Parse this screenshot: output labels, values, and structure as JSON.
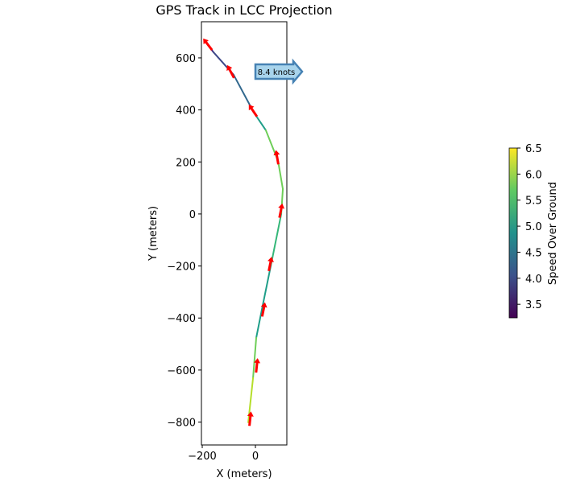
{
  "chart_data": {
    "type": "line",
    "title": "GPS Track in LCC Projection",
    "xlabel": "X (meters)",
    "ylabel": "Y (meters)",
    "xlim": [
      -203,
      118
    ],
    "ylim": [
      -888,
      739
    ],
    "xticks": [
      -200,
      0
    ],
    "yticks": [
      600,
      400,
      200,
      0,
      -200,
      -400,
      -600,
      -800
    ],
    "track": [
      {
        "x": -188,
        "y": 662,
        "speed": 3.5
      },
      {
        "x": -158,
        "y": 622,
        "speed": 3.8
      },
      {
        "x": -82,
        "y": 535,
        "speed": 4.2
      },
      {
        "x": -6,
        "y": 390,
        "speed": 4.6
      },
      {
        "x": 39,
        "y": 322,
        "speed": 5.2
      },
      {
        "x": 85,
        "y": 204,
        "speed": 5.9
      },
      {
        "x": 103,
        "y": 96,
        "speed": 5.6
      },
      {
        "x": 97,
        "y": 0,
        "speed": 6.0
      },
      {
        "x": 58,
        "y": -198,
        "speed": 5.0
      },
      {
        "x": 27,
        "y": -353,
        "speed": 4.9
      },
      {
        "x": 3,
        "y": -476,
        "speed": 5.2
      },
      {
        "x": -9,
        "y": -631,
        "speed": 6.2
      },
      {
        "x": -27,
        "y": -801,
        "speed": 5.5
      }
    ],
    "heading_arrows": [
      {
        "x": -178,
        "y": 650
      },
      {
        "x": -92,
        "y": 545
      },
      {
        "x": -8,
        "y": 395
      },
      {
        "x": 82,
        "y": 215
      },
      {
        "x": 95,
        "y": 10
      },
      {
        "x": 55,
        "y": -195
      },
      {
        "x": 30,
        "y": -370
      },
      {
        "x": 5,
        "y": -585
      },
      {
        "x": -20,
        "y": -790
      }
    ],
    "annotation": {
      "text": "8.4 knots",
      "x": 0,
      "y": 550
    },
    "colorbar": {
      "label": "Speed Over Ground",
      "range": [
        3.24,
        6.5
      ],
      "ticks": [
        "3.5",
        "4.0",
        "4.5",
        "5.0",
        "5.5",
        "6.0",
        "6.5"
      ],
      "colormap": "viridis"
    },
    "colors": {
      "arrow": "#ff0000",
      "annotation_fill": "#a8d4ec",
      "annotation_edge": "#4682b4"
    }
  }
}
